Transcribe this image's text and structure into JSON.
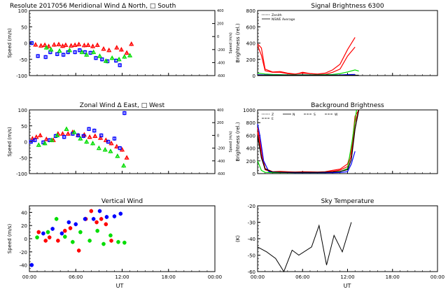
{
  "colors": {
    "red": "#ff0000",
    "blue": "#0000ff",
    "green": "#00dd00",
    "black": "#000000"
  },
  "chart_data": [
    {
      "id": "meridional",
      "type": "scatter",
      "title": "Resolute  2017056    Meridional Wind   Δ North, □ South",
      "ylabel": "Speed (m/s)",
      "y2label": "Speed (m/s)",
      "xlim": [
        0,
        24
      ],
      "ylim": [
        -100,
        100
      ],
      "y2lim": [
        -600,
        400
      ],
      "yticks": [
        "-100",
        "-50",
        "0",
        "50",
        "100"
      ],
      "y2ticks": [
        "-600",
        "-400",
        "-200",
        "0",
        "200",
        "400"
      ],
      "xticks": [
        "00:00",
        "06:00",
        "12:00",
        "18:00",
        "00:00"
      ],
      "series": [
        {
          "color": "red",
          "x": [
            0.8,
            1.5,
            2.0,
            2.5,
            3.2,
            3.8,
            4.3,
            4.7,
            5.4,
            5.9,
            6.4,
            7.1,
            7.6,
            8.2,
            8.8,
            9.6,
            10.3,
            11.3,
            11.9,
            12.6,
            13.2
          ],
          "y": [
            -5,
            -8,
            -6,
            -10,
            -5,
            -4,
            -9,
            -6,
            -8,
            -6,
            -4,
            -7,
            -6,
            -10,
            -6,
            -18,
            -22,
            -14,
            -20,
            -30,
            -3
          ]
        },
        {
          "color": "blue",
          "x": [
            0.3,
            1.1,
            2.1,
            2.7,
            3.6,
            4.4,
            5.0,
            5.9,
            6.5,
            7.2,
            7.9,
            8.6,
            9.4,
            10.1,
            11.2,
            11.7
          ],
          "y": [
            0,
            -40,
            -43,
            -28,
            -34,
            -36,
            -28,
            -28,
            -22,
            -28,
            -30,
            -46,
            -50,
            -56,
            -54,
            -68
          ]
        },
        {
          "color": "green",
          "x": [
            2.2,
            2.8,
            3.9,
            5.2,
            6.8,
            7.4,
            8.3,
            9.1,
            9.9,
            10.7,
            11.6,
            12.3,
            13.0
          ],
          "y": [
            -14,
            -20,
            -24,
            -22,
            -28,
            -36,
            -28,
            -40,
            -55,
            -46,
            -50,
            -42,
            -38
          ]
        }
      ]
    },
    {
      "id": "signal",
      "type": "line",
      "title": "Signal Brightness        6300",
      "ylabel": "Brightness (rel.)",
      "xlim": [
        0,
        24
      ],
      "ylim": [
        0,
        800
      ],
      "yticks": [
        "0",
        "200",
        "400",
        "600",
        "800"
      ],
      "xticks": [
        "00:00",
        "06:00",
        "12:00",
        "18:00",
        "00:00"
      ],
      "legend": [
        "Zenith",
        "NSWE Average"
      ],
      "series": [
        {
          "color": "red",
          "x": [
            0,
            0.5,
            1,
            2,
            3,
            4,
            5,
            6,
            7,
            8,
            9,
            10,
            11,
            12,
            13
          ],
          "y": [
            390,
            340,
            80,
            45,
            50,
            30,
            20,
            30,
            25,
            20,
            30,
            70,
            140,
            320,
            470
          ]
        },
        {
          "color": "red",
          "x": [
            0,
            0.5,
            1,
            2,
            3,
            4,
            5,
            6,
            7,
            8,
            9,
            10,
            11,
            12,
            13
          ],
          "y": [
            370,
            250,
            60,
            40,
            40,
            25,
            15,
            40,
            25,
            15,
            15,
            40,
            80,
            240,
            350
          ]
        },
        {
          "color": "green",
          "x": [
            0,
            1,
            2,
            3,
            4,
            5,
            6,
            7,
            8,
            9,
            10,
            11,
            12,
            13,
            13.5
          ],
          "y": [
            30,
            20,
            15,
            12,
            10,
            10,
            10,
            10,
            10,
            12,
            15,
            25,
            45,
            70,
            55
          ]
        },
        {
          "color": "blue",
          "x": [
            0,
            1,
            2,
            3,
            4,
            5,
            6,
            7,
            8,
            9,
            10,
            11,
            12,
            13
          ],
          "y": [
            10,
            8,
            6,
            6,
            5,
            5,
            5,
            5,
            5,
            5,
            6,
            8,
            12,
            15
          ]
        },
        {
          "color": "black",
          "x": [
            0,
            13.5
          ],
          "y": [
            4,
            4
          ]
        }
      ]
    },
    {
      "id": "zonal",
      "type": "scatter",
      "title": "Zonal Wind      Δ East, □ West",
      "ylabel": "Speed (m/s)",
      "y2label": "Speed (m/s)",
      "xlim": [
        0,
        24
      ],
      "ylim": [
        -100,
        100
      ],
      "y2lim": [
        -600,
        400
      ],
      "yticks": [
        "-100",
        "-50",
        "0",
        "50",
        "100"
      ],
      "y2ticks": [
        "-600",
        "-400",
        "-200",
        "0",
        "200",
        "400"
      ],
      "xticks": [
        "00:00",
        "06:00",
        "12:00",
        "18:00",
        "00:00"
      ],
      "series": [
        {
          "color": "red",
          "x": [
            0.4,
            0.9,
            1.4,
            2.2,
            3.1,
            3.7,
            4.3,
            5.0,
            5.6,
            6.3,
            7.1,
            7.8,
            8.5,
            9.2,
            9.9,
            10.6,
            11.3,
            12.0,
            12.6
          ],
          "y": [
            10,
            15,
            20,
            8,
            5,
            25,
            25,
            25,
            30,
            20,
            22,
            15,
            18,
            12,
            5,
            -5,
            -15,
            -25,
            -50
          ]
        },
        {
          "color": "blue",
          "x": [
            0.2,
            0.7,
            1.8,
            2.6,
            3.4,
            4.5,
            5.6,
            6.3,
            7.0,
            7.7,
            8.4,
            9.3,
            10.2,
            11.0,
            11.7,
            12.3
          ],
          "y": [
            0,
            5,
            -2,
            5,
            18,
            15,
            25,
            20,
            18,
            40,
            35,
            20,
            0,
            10,
            -20,
            90
          ]
        },
        {
          "color": "green",
          "x": [
            1.2,
            2.0,
            2.9,
            3.6,
            4.8,
            5.8,
            6.6,
            7.4,
            8.2,
            9.0,
            9.8,
            10.5,
            11.4,
            12.2
          ],
          "y": [
            -10,
            -5,
            5,
            20,
            40,
            30,
            10,
            0,
            -5,
            -20,
            -25,
            -30,
            -45,
            -75
          ]
        }
      ]
    },
    {
      "id": "background",
      "type": "line",
      "title": "Background Brightness",
      "ylabel": "Brightness (rel.)",
      "xlim": [
        0,
        24
      ],
      "ylim": [
        0,
        1000
      ],
      "yticks": [
        "0",
        "200",
        "400",
        "600",
        "800",
        "1000"
      ],
      "xticks": [
        "00:00",
        "06:00",
        "12:00",
        "18:00",
        "00:00"
      ],
      "legend": [
        "Z",
        "N",
        "S",
        "W",
        "E"
      ],
      "series": [
        {
          "color": "red",
          "x": [
            0,
            0.5,
            1,
            2,
            3,
            4,
            5,
            6,
            7,
            8,
            9,
            10,
            11,
            12,
            12.5,
            13,
            13.5
          ],
          "y": [
            720,
            380,
            80,
            30,
            35,
            30,
            25,
            30,
            28,
            25,
            30,
            50,
            70,
            150,
            350,
            900,
            1000
          ]
        },
        {
          "color": "red",
          "x": [
            0,
            0.5,
            1,
            2,
            3,
            4,
            5,
            6,
            7,
            8,
            9,
            10,
            11,
            12,
            12.5,
            13,
            13.5
          ],
          "y": [
            650,
            300,
            60,
            25,
            30,
            25,
            20,
            22,
            20,
            20,
            25,
            35,
            55,
            110,
            280,
            800,
            1000
          ]
        },
        {
          "color": "green",
          "x": [
            0,
            0.5,
            1,
            2,
            3,
            4,
            5,
            6,
            7,
            8,
            9,
            10,
            11,
            12,
            12.6,
            13.2
          ],
          "y": [
            200,
            50,
            20,
            15,
            15,
            15,
            15,
            15,
            15,
            15,
            15,
            20,
            30,
            80,
            500,
            1000
          ]
        },
        {
          "color": "blue",
          "x": [
            0,
            0.3,
            0.8,
            1.5,
            3,
            5,
            7,
            9,
            10,
            11,
            12,
            12.5,
            13
          ],
          "y": [
            780,
            600,
            200,
            30,
            20,
            15,
            15,
            15,
            15,
            18,
            30,
            150,
            350
          ]
        },
        {
          "color": "black",
          "x": [
            0,
            0.5,
            1,
            2,
            4,
            6,
            8,
            10,
            11,
            12,
            12.5,
            13,
            13.5
          ],
          "y": [
            600,
            250,
            70,
            25,
            20,
            20,
            20,
            25,
            35,
            60,
            220,
            700,
            1000
          ]
        }
      ]
    },
    {
      "id": "vertical",
      "type": "scatter",
      "title": "Vertical Wind",
      "ylabel": "Speed (m/s)",
      "xlim": [
        0,
        24
      ],
      "ylim": [
        -50,
        50
      ],
      "yticks": [
        "-40",
        "-20",
        "0",
        "20",
        "40"
      ],
      "xticks": [
        "00:00",
        "06:00",
        "12:00",
        "18:00",
        "00:00"
      ],
      "series": [
        {
          "color": "red",
          "x": [
            1.2,
            2.1,
            2.6,
            3.7,
            4.6,
            5.3,
            6.4,
            7.3,
            8.0,
            8.7,
            9.3,
            9.9,
            10.6
          ],
          "y": [
            10,
            -3,
            2,
            -3,
            12,
            16,
            -18,
            30,
            42,
            25,
            30,
            22,
            -3
          ]
        },
        {
          "color": "blue",
          "x": [
            0.3,
            1.8,
            3.0,
            4.2,
            5.1,
            6.0,
            7.2,
            8.3,
            9.1,
            10.0,
            11.0,
            11.8
          ],
          "y": [
            -40,
            8,
            15,
            8,
            25,
            22,
            30,
            30,
            42,
            33,
            34,
            38
          ]
        },
        {
          "color": "green",
          "x": [
            1.0,
            2.4,
            3.5,
            4.6,
            5.6,
            6.6,
            7.8,
            8.8,
            9.6,
            10.5,
            11.5,
            12.3
          ],
          "y": [
            2,
            10,
            30,
            3,
            -5,
            10,
            -3,
            12,
            -8,
            5,
            -5,
            -6
          ]
        }
      ]
    },
    {
      "id": "sky",
      "type": "line",
      "title": "Sky Temperature",
      "ylabel": "(K)",
      "xlim": [
        0,
        24
      ],
      "ylim": [
        -60,
        -20
      ],
      "yticks": [
        "-60",
        "-50",
        "-40",
        "-30",
        "-20"
      ],
      "xticks": [
        "00:00",
        "06:00",
        "12:00",
        "18:00",
        "00:00"
      ],
      "series": [
        {
          "color": "black",
          "x": [
            0,
            1.2,
            2.4,
            3.5,
            4.6,
            5.5,
            7.2,
            8.2,
            9.2,
            10.2,
            11.3,
            12.5
          ],
          "y": [
            -45,
            -48,
            -52,
            -60,
            -47,
            -50,
            -45,
            -32,
            -56,
            -38,
            -48,
            -30
          ]
        }
      ]
    }
  ],
  "footer": {
    "xlabel_left": "UT",
    "xlabel_right": "UT"
  }
}
